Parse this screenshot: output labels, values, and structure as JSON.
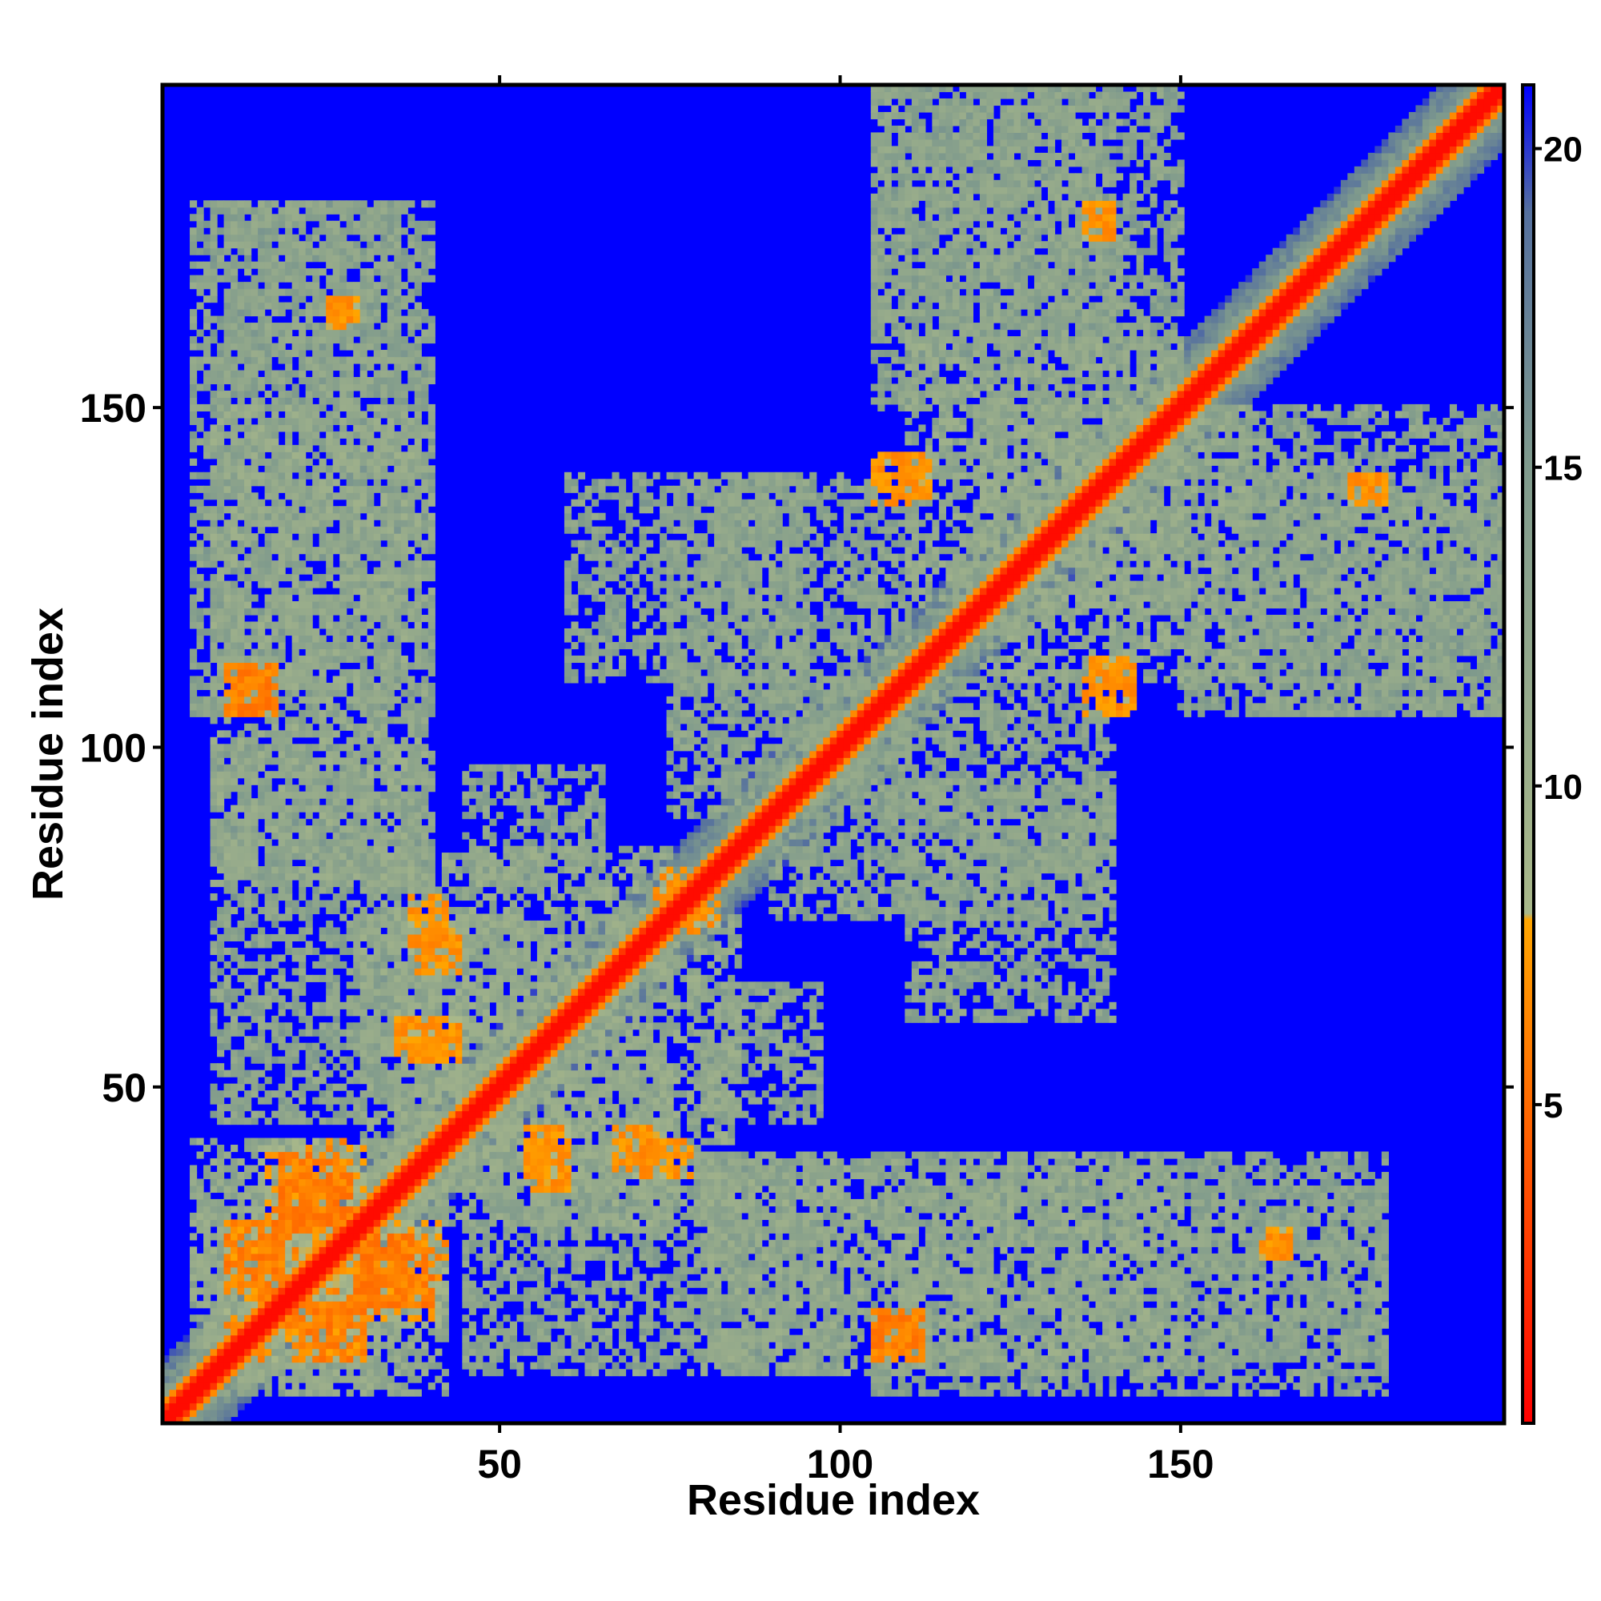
{
  "chart_data": {
    "type": "heatmap",
    "title": "",
    "xlabel": "Residue index",
    "ylabel": "Residue index",
    "xlim": [
      1,
      197
    ],
    "ylim": [
      1,
      197
    ],
    "x_ticks": [
      50,
      100,
      150
    ],
    "y_ticks": [
      50,
      100,
      150
    ],
    "grid": false,
    "colorbar": {
      "position": "right",
      "range": [
        0,
        21
      ],
      "ticks": [
        5,
        10,
        15,
        20
      ],
      "stops": [
        {
          "value": 0,
          "color": "#ff0000"
        },
        {
          "value": 5,
          "color": "#ff6a00"
        },
        {
          "value": 7.9,
          "color": "#ffa500"
        },
        {
          "value": 8.0,
          "color": "#a9b88a"
        },
        {
          "value": 15,
          "color": "#7f9a8c"
        },
        {
          "value": 19,
          "color": "#55709e"
        },
        {
          "value": 21,
          "color": "#0000ff"
        }
      ]
    },
    "background_value": 21,
    "matrix_description_note": "Symmetric residue-residue distance map; main diagonal distance ~0",
    "diagonal": {
      "from": 1,
      "to": 197,
      "value": 0
    },
    "contact_regions": [
      {
        "x": [
          5,
          35
        ],
        "y": [
          6,
          42
        ],
        "value": 12
      },
      {
        "x": [
          15,
          30
        ],
        "y": [
          10,
          42
        ],
        "value": 8
      },
      {
        "x": [
          8,
          40
        ],
        "y": [
          45,
          100
        ],
        "value": 13
      },
      {
        "x": [
          30,
          85
        ],
        "y": [
          35,
          75
        ],
        "value": 12
      },
      {
        "x": [
          45,
          65
        ],
        "y": [
          80,
          97
        ],
        "value": 13
      },
      {
        "x": [
          60,
          95
        ],
        "y": [
          110,
          140
        ],
        "value": 13
      },
      {
        "x": [
          90,
          140
        ],
        "y": [
          75,
          110
        ],
        "value": 13
      },
      {
        "x": [
          80,
          150
        ],
        "y": [
          8,
          40
        ],
        "value": 12
      },
      {
        "x": [
          150,
          180
        ],
        "y": [
          10,
          35
        ],
        "value": 13
      },
      {
        "x": [
          5,
          40
        ],
        "y": [
          105,
          180
        ],
        "value": 13
      },
      {
        "x": [
          105,
          140
        ],
        "y": [
          160,
          197
        ],
        "value": 13
      },
      {
        "x": [
          150,
          197
        ],
        "y": [
          105,
          150
        ],
        "value": 13
      },
      {
        "x": [
          120,
          160
        ],
        "y": [
          110,
          150
        ],
        "value": 12
      }
    ],
    "strong_contacts": [
      {
        "x": [
          18,
          26
        ],
        "y": [
          30,
          40
        ],
        "value": 5
      },
      {
        "x": [
          10,
          18
        ],
        "y": [
          20,
          30
        ],
        "value": 5
      },
      {
        "x": [
          29,
          37
        ],
        "y": [
          18,
          28
        ],
        "value": 5
      },
      {
        "x": [
          37,
          42
        ],
        "y": [
          70,
          78
        ],
        "value": 6
      },
      {
        "x": [
          35,
          42
        ],
        "y": [
          54,
          60
        ],
        "value": 6
      },
      {
        "x": [
          54,
          60
        ],
        "y": [
          36,
          44
        ],
        "value": 6
      },
      {
        "x": [
          67,
          73
        ],
        "y": [
          38,
          44
        ],
        "value": 6
      },
      {
        "x": [
          73,
          80
        ],
        "y": [
          76,
          82
        ],
        "value": 6
      },
      {
        "x": [
          105,
          112
        ],
        "y": [
          10,
          16
        ],
        "value": 5
      },
      {
        "x": [
          12,
          17
        ],
        "y": [
          105,
          112
        ],
        "value": 5
      },
      {
        "x": [
          108,
          113
        ],
        "y": [
          137,
          143
        ],
        "value": 6
      },
      {
        "x": [
          136,
          143
        ],
        "y": [
          105,
          112
        ],
        "value": 6
      },
      {
        "x": [
          175,
          180
        ],
        "y": [
          136,
          140
        ],
        "value": 6
      },
      {
        "x": [
          137,
          140
        ],
        "y": [
          175,
          180
        ],
        "value": 6
      },
      {
        "x": [
          162,
          166
        ],
        "y": [
          25,
          29
        ],
        "value": 6
      },
      {
        "x": [
          25,
          28
        ],
        "y": [
          162,
          166
        ],
        "value": 6
      }
    ]
  }
}
